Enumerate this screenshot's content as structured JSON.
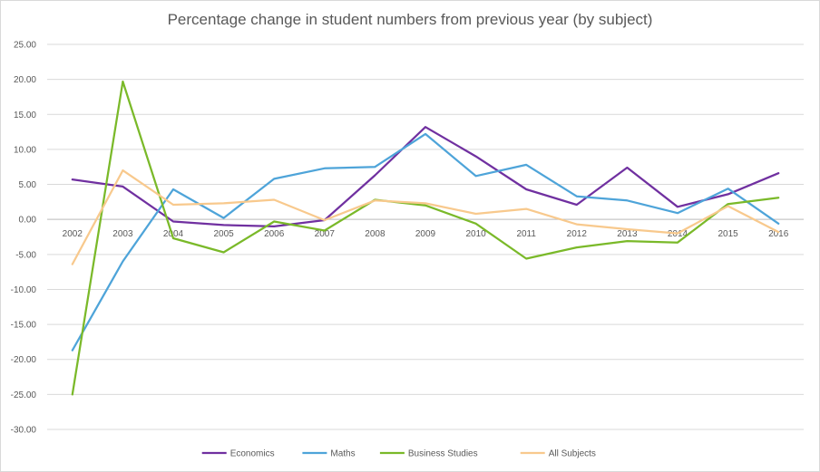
{
  "chart_data": {
    "type": "line",
    "title": "Percentage change in student numbers from previous year (by subject)",
    "xlabel": "",
    "ylabel": "",
    "ylim": [
      -30,
      25
    ],
    "ytick_step": 5,
    "y_tick_labels": [
      "25.00",
      "20.00",
      "15.00",
      "10.00",
      "5.00",
      "0.00",
      "-5.00",
      "-10.00",
      "-15.00",
      "-20.00",
      "-25.00",
      "-30.00"
    ],
    "categories": [
      "2002",
      "2003",
      "2004",
      "2005",
      "2006",
      "2007",
      "2008",
      "2009",
      "2010",
      "2011",
      "2012",
      "2013",
      "2014",
      "2015",
      "2016"
    ],
    "legend_position": "bottom",
    "series": [
      {
        "name": "Economics",
        "color": "#7030a0",
        "values": [
          5.7,
          4.7,
          -0.3,
          -0.8,
          -1.0,
          -0.1,
          6.3,
          13.2,
          9.0,
          4.3,
          2.1,
          7.4,
          1.8,
          3.6,
          6.6
        ]
      },
      {
        "name": "Maths",
        "color": "#4ea4d9",
        "values": [
          -18.7,
          -6.0,
          4.3,
          0.2,
          5.8,
          7.3,
          7.5,
          12.2,
          6.2,
          7.8,
          3.3,
          2.7,
          0.9,
          4.4,
          -0.6
        ]
      },
      {
        "name": "Business Studies",
        "color": "#7ab929",
        "values": [
          -25.0,
          19.7,
          -2.7,
          -4.7,
          -0.3,
          -1.6,
          2.8,
          2.0,
          -0.6,
          -5.6,
          -4.0,
          -3.1,
          -3.3,
          2.2,
          3.1
        ]
      },
      {
        "name": "All Subjects",
        "color": "#f8c98d",
        "values": [
          -6.4,
          7.0,
          2.1,
          2.3,
          2.8,
          -0.1,
          2.7,
          2.3,
          0.8,
          1.5,
          -0.7,
          -1.4,
          -2.0,
          1.9,
          -1.8
        ]
      }
    ]
  }
}
